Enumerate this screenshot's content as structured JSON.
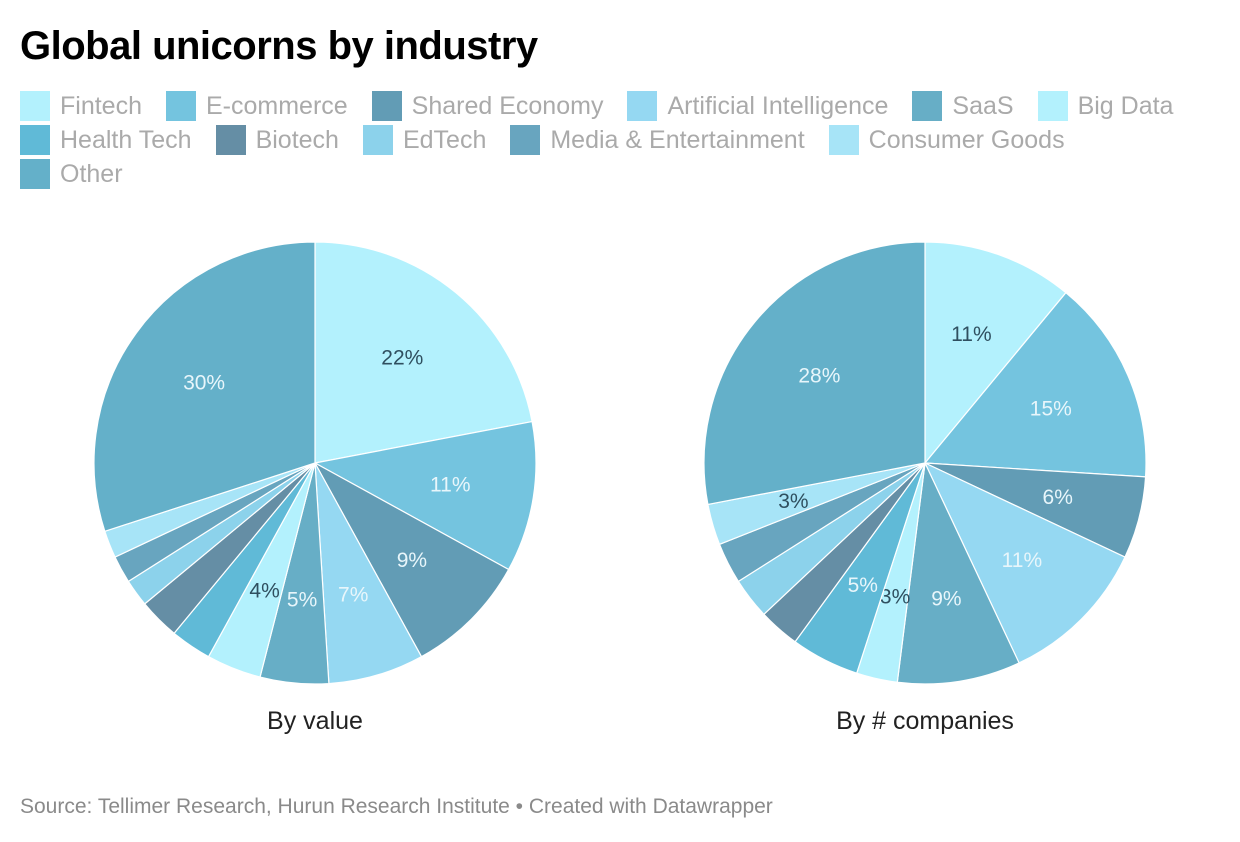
{
  "title": "Global unicorns by industry",
  "source": "Source: Tellimer Research, Hurun Research Institute • Created with Datawrapper",
  "legend": [
    {
      "label": "Fintech",
      "color": "#b3f1fd"
    },
    {
      "label": "E-commerce",
      "color": "#74c4df"
    },
    {
      "label": "Shared Economy",
      "color": "#629cb5"
    },
    {
      "label": "Artificial Intelligence",
      "color": "#95d8f2"
    },
    {
      "label": "SaaS",
      "color": "#67aec6"
    },
    {
      "label": "Big Data",
      "color": "#b3f1fd"
    },
    {
      "label": "Health Tech",
      "color": "#60bad7"
    },
    {
      "label": "Biotech",
      "color": "#658ea5"
    },
    {
      "label": "EdTech",
      "color": "#8cd2eb"
    },
    {
      "label": "Media & Entertainment",
      "color": "#68a5bf"
    },
    {
      "label": "Consumer Goods",
      "color": "#a7e4f7"
    },
    {
      "label": "Other",
      "color": "#64b0c9"
    }
  ],
  "chart_data": [
    {
      "type": "pie",
      "title": "By value",
      "categories": [
        "Fintech",
        "E-commerce",
        "Shared Economy",
        "Artificial Intelligence",
        "SaaS",
        "Big Data",
        "Health Tech",
        "Biotech",
        "EdTech",
        "Media & Entertainment",
        "Consumer Goods",
        "Other"
      ],
      "values": [
        22,
        11,
        9,
        7,
        5,
        4,
        3,
        3,
        2,
        2,
        2,
        30
      ],
      "labels": [
        "22%",
        "11%",
        "9%",
        "7%",
        "5%",
        "4%",
        "",
        "",
        "",
        "",
        "",
        "30%"
      ]
    },
    {
      "type": "pie",
      "title": "By # companies",
      "categories": [
        "Fintech",
        "E-commerce",
        "Shared Economy",
        "Artificial Intelligence",
        "SaaS",
        "Big Data",
        "Health Tech",
        "Biotech",
        "EdTech",
        "Media & Entertainment",
        "Consumer Goods",
        "Other"
      ],
      "values": [
        11,
        15,
        6,
        11,
        9,
        3,
        5,
        3,
        3,
        3,
        3,
        28
      ],
      "labels": [
        "11%",
        "15%",
        "6%",
        "11%",
        "9%",
        "3%",
        "5%",
        "",
        "",
        "",
        "3%",
        "28%"
      ]
    }
  ]
}
